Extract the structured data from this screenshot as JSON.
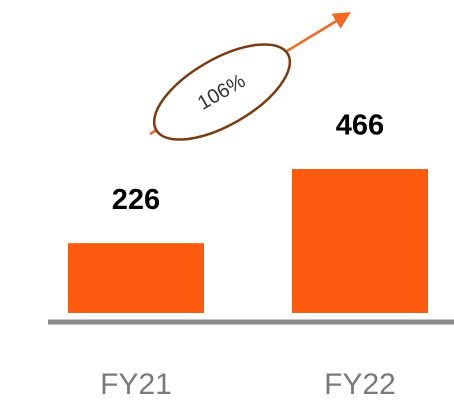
{
  "chart_data": {
    "type": "bar",
    "categories": [
      "FY21",
      "FY22"
    ],
    "values": [
      226,
      466
    ],
    "color": "#fc5a0e",
    "annotation": "106%"
  }
}
